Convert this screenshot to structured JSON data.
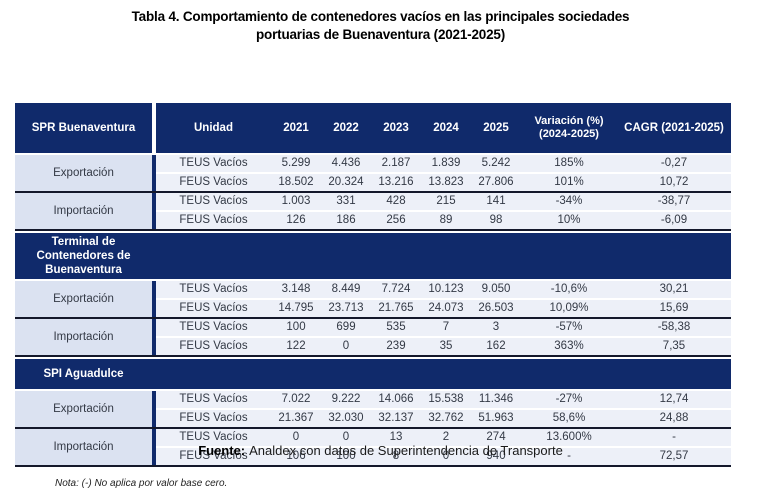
{
  "title": {
    "line1": "Tabla 4. Comportamiento de contenedores vacíos en las principales sociedades",
    "line2": "portuarias de Buenaventura (2021-2025)"
  },
  "table": {
    "header": {
      "col1": "SPR Buenaventura",
      "unidad": "Unidad",
      "years": [
        "2021",
        "2022",
        "2023",
        "2024",
        "2025"
      ],
      "variacion_line1": "Variación (%)",
      "variacion_line2": "(2024-2025)",
      "cagr": "CAGR (2021-2025)"
    },
    "sections": [
      {
        "name": "SPR Buenaventura",
        "groups": [
          {
            "label": "Exportación",
            "rows": [
              {
                "unidad": "TEUS Vacíos",
                "values": [
                  "5.299",
                  "4.436",
                  "2.187",
                  "1.839",
                  "5.242",
                  "185%",
                  "-0,27"
                ]
              },
              {
                "unidad": "FEUS Vacíos",
                "values": [
                  "18.502",
                  "20.324",
                  "13.216",
                  "13.823",
                  "27.806",
                  "101%",
                  "10,72"
                ]
              }
            ]
          },
          {
            "label": "Importación",
            "rows": [
              {
                "unidad": "TEUS Vacíos",
                "values": [
                  "1.003",
                  "331",
                  "428",
                  "215",
                  "141",
                  "-34%",
                  "-38,77"
                ]
              },
              {
                "unidad": "FEUS Vacíos",
                "values": [
                  "126",
                  "186",
                  "256",
                  "89",
                  "98",
                  "10%",
                  "-6,09"
                ]
              }
            ]
          }
        ]
      },
      {
        "name": "Terminal de Contenedores de Buenaventura",
        "groups": [
          {
            "label": "Exportación",
            "rows": [
              {
                "unidad": "TEUS Vacíos",
                "values": [
                  "3.148",
                  "8.449",
                  "7.724",
                  "10.123",
                  "9.050",
                  "-10,6%",
                  "30,21"
                ]
              },
              {
                "unidad": "FEUS Vacíos",
                "values": [
                  "14.795",
                  "23.713",
                  "21.765",
                  "24.073",
                  "26.503",
                  "10,09%",
                  "15,69"
                ]
              }
            ]
          },
          {
            "label": "Importación",
            "rows": [
              {
                "unidad": "TEUS Vacíos",
                "values": [
                  "100",
                  "699",
                  "535",
                  "7",
                  "3",
                  "-57%",
                  "-58,38"
                ]
              },
              {
                "unidad": "FEUS Vacíos",
                "values": [
                  "122",
                  "0",
                  "239",
                  "35",
                  "162",
                  "363%",
                  "7,35"
                ]
              }
            ]
          }
        ]
      },
      {
        "name": "SPI Aguadulce",
        "groups": [
          {
            "label": "Exportación",
            "rows": [
              {
                "unidad": "TEUS Vacíos",
                "values": [
                  "7.022",
                  "9.222",
                  "14.066",
                  "15.538",
                  "11.346",
                  "-27%",
                  "12,74"
                ]
              },
              {
                "unidad": "FEUS Vacíos",
                "values": [
                  "21.367",
                  "32.030",
                  "32.137",
                  "32.762",
                  "51.963",
                  "58,6%",
                  "24,88"
                ]
              }
            ]
          },
          {
            "label": "Importación",
            "rows": [
              {
                "unidad": "TEUS Vacíos",
                "values": [
                  "0",
                  "0",
                  "13",
                  "2",
                  "274",
                  "13.600%",
                  "-"
                ]
              },
              {
                "unidad": "FEUS Vacíos",
                "values": [
                  "106",
                  "100",
                  "8",
                  "0",
                  "940",
                  "-",
                  "72,57"
                ]
              }
            ]
          }
        ]
      }
    ]
  },
  "footer": {
    "fuente_label": "Fuente:",
    "fuente_text": "Analdex con datos de Superintendencia de Transporte",
    "nota": "Nota: (-) No aplica por valor base cero."
  },
  "colors": {
    "navy": "#102a6b",
    "light_blue": "#dbe2f1",
    "row_bg": "#edf0f8",
    "border_dark": "#14182b"
  }
}
